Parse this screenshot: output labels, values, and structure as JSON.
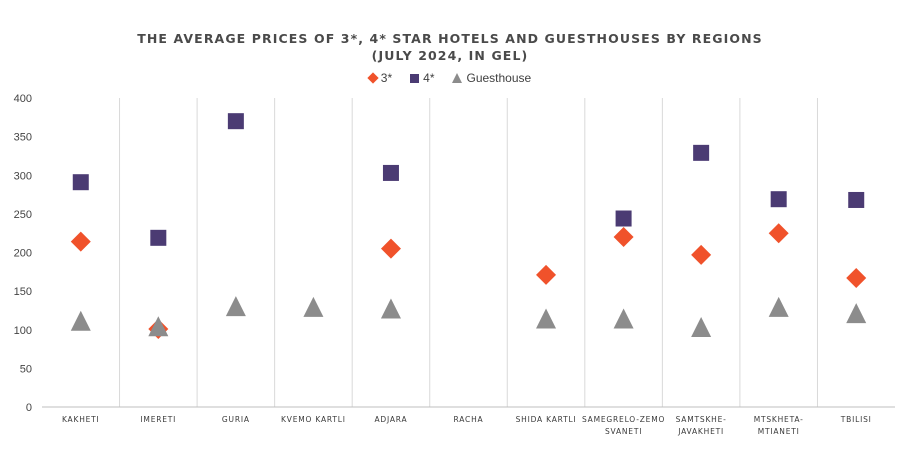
{
  "chart_data": {
    "type": "scatter",
    "title_line1": "THE AVERAGE PRICES OF 3*, 4* STAR HOTELS AND GUESTHOUSES BY REGIONS",
    "title_line2": "(JULY 2024, IN GEL)",
    "categories": [
      [
        "KAKHETI"
      ],
      [
        "IMERETI"
      ],
      [
        "GURIA"
      ],
      [
        "KVEMO KARTLI"
      ],
      [
        "ADJARA"
      ],
      [
        "RACHA"
      ],
      [
        "SHIDA KARTLI"
      ],
      [
        "SAMEGRELO-ZEMO",
        "SVANETI"
      ],
      [
        "SAMTSKHE-",
        "JAVAKHETI"
      ],
      [
        "MTSKHETA-",
        "MTIANETI"
      ],
      [
        "TBILISI"
      ]
    ],
    "series": [
      {
        "name": "3*",
        "marker": "diamond",
        "color": "#f0522b",
        "values": [
          214,
          101,
          null,
          null,
          205,
          null,
          171,
          220,
          197,
          225,
          167
        ]
      },
      {
        "name": "4*",
        "marker": "square",
        "color": "#4b3b73",
        "values": [
          291,
          219,
          370,
          null,
          303,
          null,
          null,
          244,
          329,
          269,
          268
        ]
      },
      {
        "name": "Guesthouse",
        "marker": "triangle",
        "color": "#8c8c8c",
        "values": [
          109,
          102,
          128,
          127,
          125,
          null,
          112,
          112,
          101,
          127,
          119
        ]
      }
    ],
    "ylim": [
      0,
      400
    ],
    "yticks": [
      0,
      50,
      100,
      150,
      200,
      250,
      300,
      350,
      400
    ],
    "grid": "vertical category separators",
    "legend_position": "top-center"
  }
}
